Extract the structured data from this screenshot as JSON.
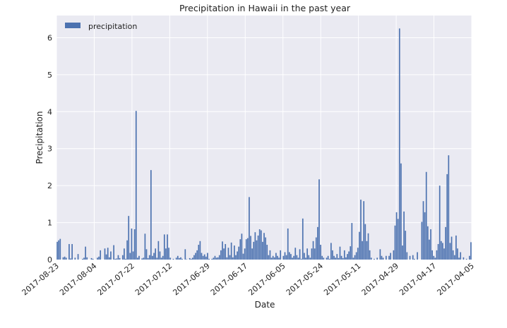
{
  "chart_data": {
    "type": "bar",
    "title": "Precipitation in Hawaii in the past year",
    "xlabel": "Date",
    "ylabel": "Precipitation",
    "ylim": [
      0,
      6.6
    ],
    "yticks": [
      0,
      1,
      2,
      3,
      4,
      5,
      6
    ],
    "x_tick_labels": [
      "2017-08-23",
      "2017-08-04",
      "2017-07-22",
      "2017-07-12",
      "2017-06-29",
      "2017-06-17",
      "2017-06-05",
      "2017-05-24",
      "2017-05-11",
      "2017-04-29",
      "2017-04-17",
      "2017-04-05"
    ],
    "grid": true,
    "legend_position": "upper left",
    "bar_color": "#4c72b0",
    "background_color": "#eaeaf2",
    "series": [
      {
        "name": "precipitation",
        "values": [
          0.48,
          0.52,
          0.56,
          0.0,
          0.06,
          0.08,
          0.05,
          0.0,
          0.42,
          0.03,
          0.42,
          0.0,
          0.05,
          0.0,
          0.15,
          0.0,
          0.0,
          0.02,
          0.05,
          0.35,
          0.06,
          0.0,
          0.0,
          0.04,
          0.02,
          0.0,
          0.0,
          0.05,
          0.08,
          0.25,
          0.0,
          0.0,
          0.3,
          0.14,
          0.32,
          0.06,
          0.22,
          0.0,
          0.39,
          0.02,
          0.03,
          0.12,
          0.04,
          0.0,
          0.12,
          0.3,
          0.02,
          0.52,
          1.18,
          0.18,
          0.84,
          0.22,
          0.82,
          4.02,
          0.05,
          0.1,
          0.0,
          0.03,
          0.05,
          0.7,
          0.28,
          0.04,
          0.12,
          2.42,
          0.1,
          0.18,
          0.3,
          0.05,
          0.5,
          0.22,
          0.05,
          0.1,
          0.68,
          0.3,
          0.68,
          0.32,
          0.05,
          0.0,
          0.02,
          0.0,
          0.05,
          0.1,
          0.04,
          0.06,
          0.02,
          0.0,
          0.28,
          0.01,
          0.0,
          0.04,
          0.02,
          0.05,
          0.12,
          0.18,
          0.25,
          0.4,
          0.5,
          0.18,
          0.1,
          0.14,
          0.08,
          0.18,
          0.02,
          0.0,
          0.02,
          0.05,
          0.1,
          0.05,
          0.06,
          0.12,
          0.25,
          0.49,
          0.3,
          0.42,
          0.06,
          0.32,
          0.12,
          0.46,
          0.06,
          0.38,
          0.12,
          0.22,
          0.35,
          0.55,
          0.7,
          0.16,
          0.3,
          0.55,
          0.58,
          1.69,
          0.64,
          0.3,
          0.48,
          0.74,
          0.52,
          0.65,
          0.82,
          0.79,
          0.48,
          0.72,
          0.6,
          0.4,
          0.12,
          0.25,
          0.05,
          0.1,
          0.06,
          0.18,
          0.1,
          0.05,
          0.25,
          0.0,
          0.1,
          0.2,
          0.12,
          0.84,
          0.2,
          0.15,
          0.05,
          0.1,
          0.32,
          0.12,
          0.05,
          0.28,
          0.02,
          1.11,
          0.18,
          0.05,
          0.3,
          0.12,
          0.05,
          0.3,
          0.5,
          0.3,
          0.6,
          0.88,
          2.17,
          0.4,
          0.1,
          0.05,
          0.0,
          0.05,
          0.1,
          0.02,
          0.45,
          0.25,
          0.1,
          0.05,
          0.15,
          0.04,
          0.35,
          0.1,
          0.04,
          0.25,
          0.06,
          0.15,
          0.22,
          0.36,
          0.99,
          0.05,
          0.12,
          0.2,
          0.32,
          0.75,
          1.62,
          0.5,
          1.58,
          0.96,
          0.5,
          0.71,
          0.25,
          0.05,
          0.0,
          0.02,
          0.0,
          0.05,
          0.0,
          0.28,
          0.1,
          0.05,
          0.0,
          0.1,
          0.0,
          0.1,
          0.18,
          0.0,
          0.25,
          0.92,
          1.28,
          1.1,
          6.25,
          2.6,
          0.38,
          1.3,
          0.78,
          0.2,
          0.0,
          0.1,
          0.0,
          0.12,
          0.02,
          0.0,
          0.2,
          0.0,
          0.0,
          1.02,
          1.58,
          1.28,
          2.37,
          0.9,
          0.54,
          0.82,
          0.25,
          0.1,
          0.05,
          0.25,
          0.42,
          2.0,
          0.5,
          0.45,
          0.3,
          0.88,
          2.31,
          2.82,
          0.45,
          0.62,
          0.25,
          0.12,
          0.65,
          0.3,
          0.05,
          0.2,
          0.0,
          0.06,
          0.0,
          0.02,
          0.0,
          0.1,
          0.47
        ]
      }
    ]
  }
}
